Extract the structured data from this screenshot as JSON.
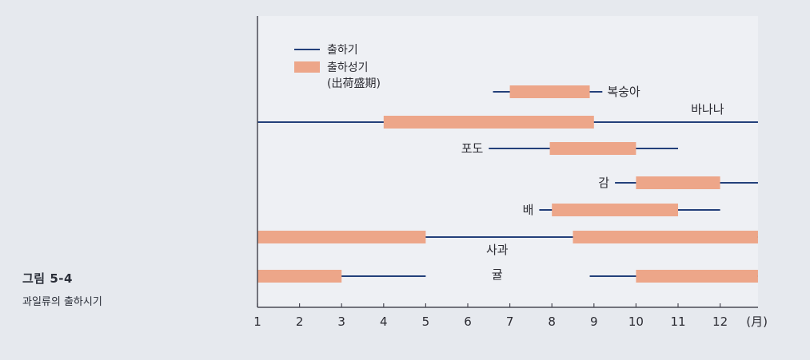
{
  "figure": {
    "number": "그림 5-4",
    "caption": "과일류의 출하시기"
  },
  "colors": {
    "shipping_line": "#23407a",
    "peak_bar": "#eda689",
    "axis": "#4a4a55",
    "plot_bg": "#eef0f4",
    "page_bg": "#e6e9ee"
  },
  "chart_data": {
    "type": "gantt",
    "title": "",
    "xlabel": "",
    "ylabel": "",
    "x_unit": "(月)",
    "xlim": [
      1,
      12.9
    ],
    "x_ticks": [
      "1",
      "2",
      "3",
      "4",
      "5",
      "6",
      "7",
      "8",
      "9",
      "10",
      "11",
      "12"
    ],
    "grid": false,
    "legend_position": "top-left",
    "legend": [
      {
        "key": "shipping",
        "label": "출하기",
        "lines": [
          "출하기"
        ]
      },
      {
        "key": "peak",
        "label": "출하성기 (出荷盛期)",
        "lines": [
          "출하성기",
          "(出荷盛期)"
        ]
      }
    ],
    "series": [
      {
        "name": "복숭아",
        "label_side": "right",
        "label_at": 9.3,
        "shipping": [
          [
            6.6,
            9.2
          ]
        ],
        "peak": [
          [
            7.0,
            8.9
          ]
        ]
      },
      {
        "name": "바나나",
        "label_side": "above",
        "label_at": 11.7,
        "shipping": [
          [
            1.0,
            12.9
          ]
        ],
        "peak": [
          [
            4.0,
            9.0
          ]
        ]
      },
      {
        "name": "포도",
        "label_side": "left",
        "label_at": 6.5,
        "shipping": [
          [
            6.5,
            11.0
          ]
        ],
        "peak": [
          [
            7.95,
            10.0
          ]
        ]
      },
      {
        "name": "감",
        "label_side": "left",
        "label_at": 9.5,
        "shipping": [
          [
            9.5,
            12.9
          ]
        ],
        "peak": [
          [
            10.0,
            12.0
          ]
        ]
      },
      {
        "name": "배",
        "label_side": "left",
        "label_at": 7.7,
        "shipping": [
          [
            7.7,
            12.0
          ]
        ],
        "peak": [
          [
            8.0,
            11.0
          ]
        ]
      },
      {
        "name": "사과",
        "label_side": "below",
        "label_at": 6.7,
        "shipping": [
          [
            1.0,
            12.9
          ]
        ],
        "peak": [
          [
            1.0,
            5.0
          ],
          [
            8.5,
            12.9
          ]
        ]
      },
      {
        "name": "귤",
        "label_side": "below-center",
        "label_at": 6.7,
        "shipping": [
          [
            1.0,
            5.0
          ],
          [
            8.9,
            12.9
          ]
        ],
        "peak": [
          [
            1.0,
            3.0
          ],
          [
            10.0,
            12.9
          ]
        ]
      }
    ]
  }
}
